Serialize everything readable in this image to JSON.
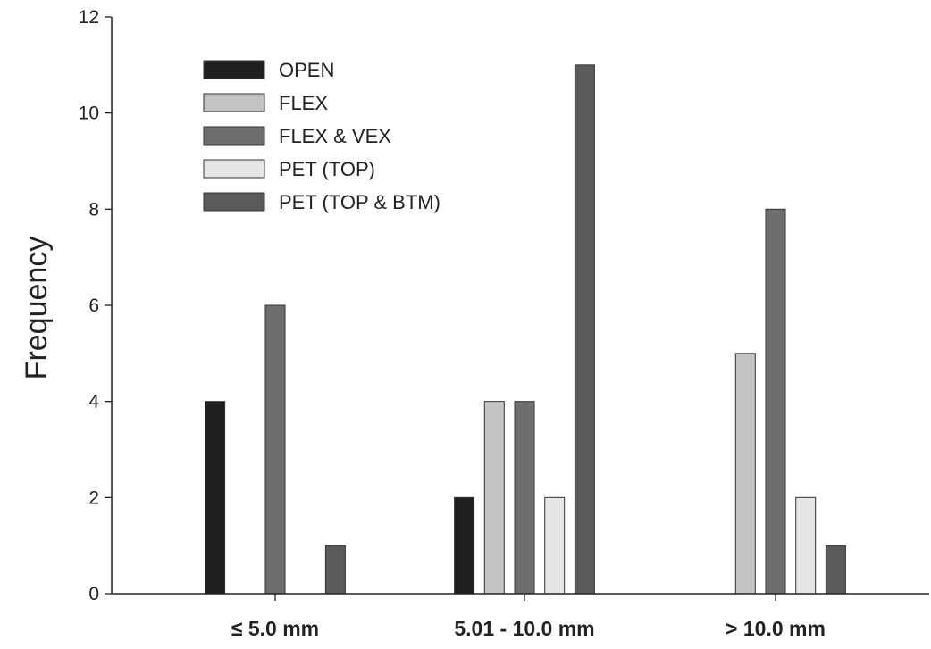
{
  "chart_data": {
    "type": "bar",
    "title": "",
    "xlabel": "",
    "ylabel": "Frequency",
    "categories": [
      "≤ 5.0 mm",
      "5.01 - 10.0 mm",
      "> 10.0 mm"
    ],
    "ylim": [
      0,
      12
    ],
    "yticks": [
      0,
      2,
      4,
      6,
      8,
      10,
      12
    ],
    "grid": false,
    "legend_position": "top-left",
    "series": [
      {
        "name": "OPEN",
        "color": "#1f1f1f",
        "values": [
          4,
          2,
          0
        ]
      },
      {
        "name": "FLEX",
        "color": "#c4c4c4",
        "values": [
          0,
          4,
          5
        ]
      },
      {
        "name": "FLEX & VEX",
        "color": "#6e6e6e",
        "values": [
          6,
          4,
          8
        ]
      },
      {
        "name": "PET (TOP)",
        "color": "#e6e6e6",
        "values": [
          0,
          2,
          2
        ]
      },
      {
        "name": "PET (TOP & BTM)",
        "color": "#5a5a5a",
        "values": [
          1,
          11,
          1
        ]
      }
    ]
  }
}
